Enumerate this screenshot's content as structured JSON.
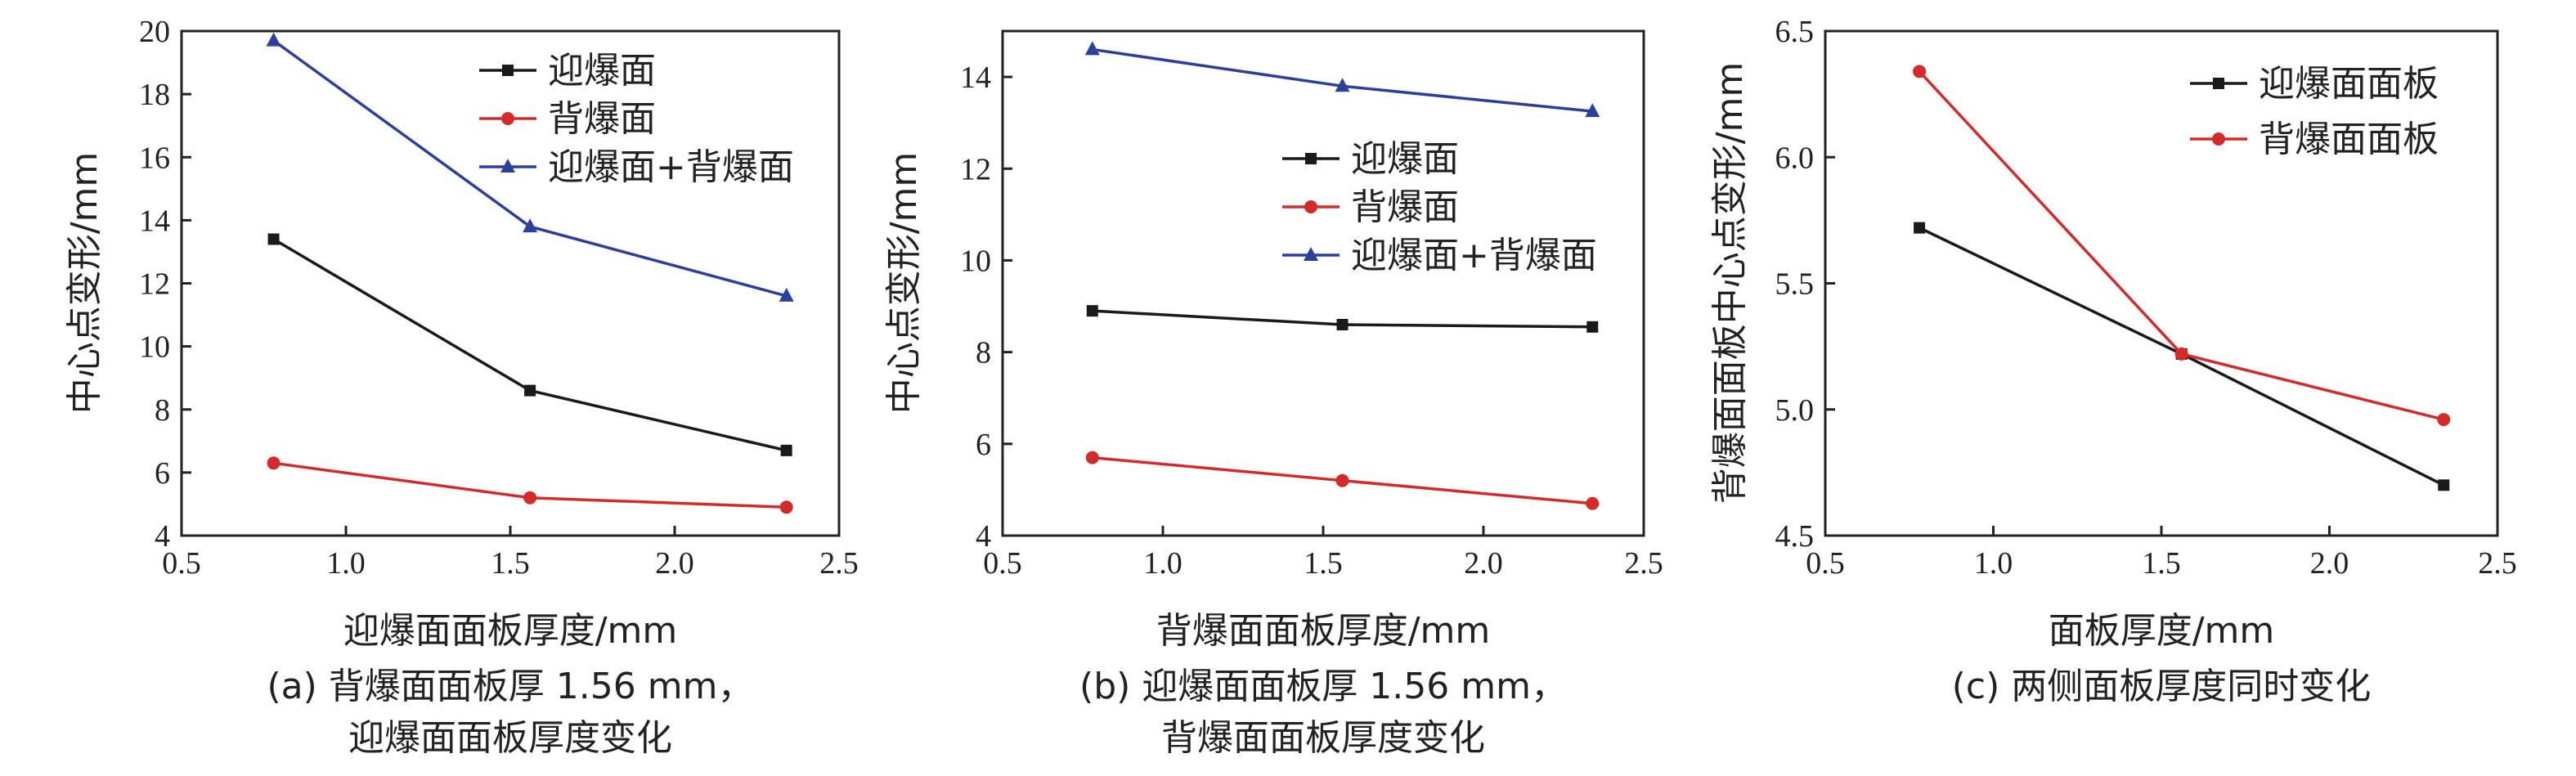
{
  "chart_data": [
    {
      "type": "line",
      "xlabel": "迎爆面面板厚度/mm",
      "ylabel": "中心点变形/mm",
      "xlim": [
        0.5,
        2.5
      ],
      "ylim": [
        4,
        20
      ],
      "xticks": [
        0.5,
        1.0,
        1.5,
        2.0,
        2.5
      ],
      "xtick_labels": [
        "0.5",
        "1.0",
        "1.5",
        "2.0",
        "2.5"
      ],
      "yticks": [
        4,
        6,
        8,
        10,
        12,
        14,
        16,
        18,
        20
      ],
      "ytick_labels": [
        "4",
        "6",
        "8",
        "10",
        "12",
        "14",
        "16",
        "18",
        "20"
      ],
      "x": [
        0.78,
        1.56,
        2.34
      ],
      "legend_position": "top-right",
      "series": [
        {
          "name": "迎爆面",
          "values": [
            13.4,
            8.6,
            6.7
          ],
          "color": "#1a1a1a",
          "marker": "square"
        },
        {
          "name": "背爆面",
          "values": [
            6.3,
            5.2,
            4.9
          ],
          "color": "#d42a2a",
          "marker": "circle"
        },
        {
          "name": "迎爆面+背爆面",
          "values": [
            19.7,
            13.8,
            11.6
          ],
          "color": "#2b3f9c",
          "marker": "triangle"
        }
      ],
      "caption_lines": [
        "(a) 背爆面面板厚 1.56 mm，",
        "迎爆面面板厚度变化"
      ]
    },
    {
      "type": "line",
      "xlabel": "背爆面面板厚度/mm",
      "ylabel": "中心点变形/mm",
      "xlim": [
        0.5,
        2.5
      ],
      "ylim": [
        4,
        15
      ],
      "xticks": [
        0.5,
        1.0,
        1.5,
        2.0,
        2.5
      ],
      "xtick_labels": [
        "0.5",
        "1.0",
        "1.5",
        "2.0",
        "2.5"
      ],
      "yticks": [
        4,
        6,
        8,
        10,
        12,
        14
      ],
      "ytick_labels": [
        "4",
        "6",
        "8",
        "10",
        "12",
        "14"
      ],
      "x": [
        0.78,
        1.56,
        2.34
      ],
      "legend_position": "center-right",
      "series": [
        {
          "name": "迎爆面",
          "values": [
            8.9,
            8.6,
            8.55
          ],
          "color": "#1a1a1a",
          "marker": "square"
        },
        {
          "name": "背爆面",
          "values": [
            5.7,
            5.2,
            4.7
          ],
          "color": "#d42a2a",
          "marker": "circle"
        },
        {
          "name": "迎爆面+背爆面",
          "values": [
            14.6,
            13.8,
            13.25
          ],
          "color": "#2b3f9c",
          "marker": "triangle"
        }
      ],
      "caption_lines": [
        "(b) 迎爆面面板厚 1.56 mm，",
        "背爆面面板厚度变化"
      ]
    },
    {
      "type": "line",
      "xlabel": "面板厚度/mm",
      "ylabel": "背爆面面板中心点变形/mm",
      "xlim": [
        0.5,
        2.5
      ],
      "ylim": [
        4.5,
        6.5
      ],
      "xticks": [
        0.5,
        1.0,
        1.5,
        2.0,
        2.5
      ],
      "xtick_labels": [
        "0.5",
        "1.0",
        "1.5",
        "2.0",
        "2.5"
      ],
      "yticks": [
        4.5,
        5.0,
        5.5,
        6.0,
        6.5
      ],
      "ytick_labels": [
        "4.5",
        "5.0",
        "5.5",
        "6.0",
        "6.5"
      ],
      "x": [
        0.78,
        1.56,
        2.34
      ],
      "legend_position": "top-right",
      "series": [
        {
          "name": "迎爆面面板",
          "values": [
            5.72,
            5.22,
            4.7
          ],
          "color": "#1a1a1a",
          "marker": "square"
        },
        {
          "name": "背爆面面板",
          "values": [
            6.34,
            5.22,
            4.96
          ],
          "color": "#d42a2a",
          "marker": "circle"
        }
      ],
      "caption_lines": [
        "(c) 两侧面板厚度同时变化"
      ]
    }
  ]
}
